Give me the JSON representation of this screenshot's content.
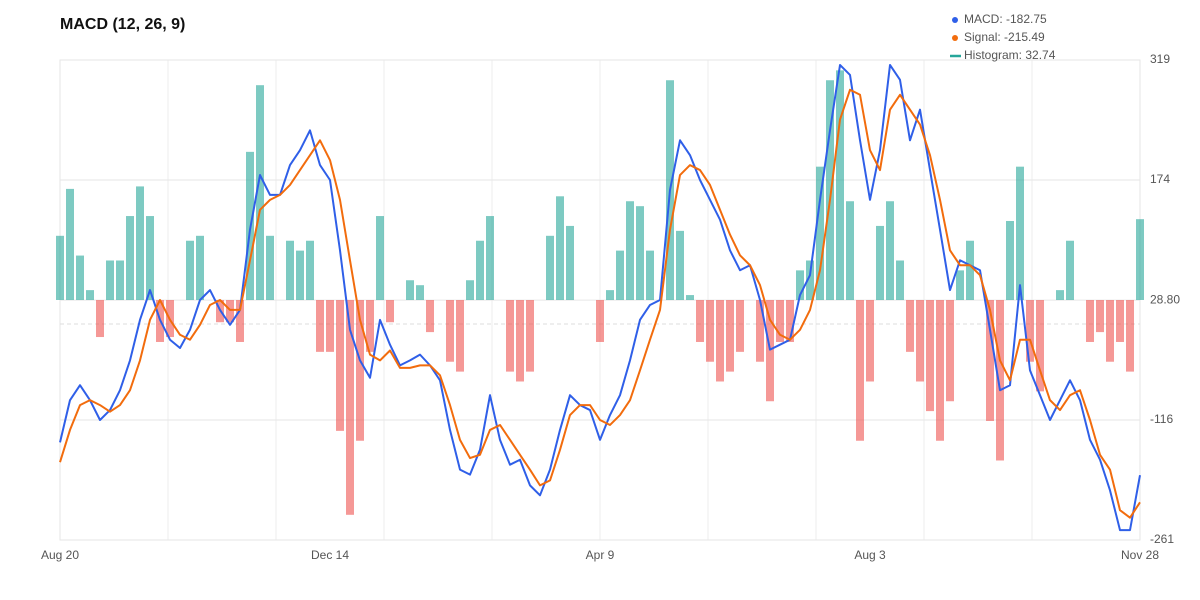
{
  "chart_data": {
    "type": "macd",
    "title": "MACD (12, 26, 9)",
    "categories": [
      "Aug 20",
      null,
      null,
      null,
      null,
      null,
      null,
      null,
      null,
      null,
      null,
      null,
      null,
      null,
      null,
      null,
      null,
      null,
      null,
      null,
      null,
      null,
      null,
      null,
      null,
      null,
      null,
      "Dec 14",
      null,
      null,
      null,
      null,
      null,
      null,
      null,
      null,
      null,
      null,
      null,
      null,
      null,
      null,
      null,
      null,
      null,
      null,
      null,
      null,
      null,
      null,
      null,
      null,
      null,
      null,
      "Apr 9",
      null,
      null,
      null,
      null,
      null,
      null,
      null,
      null,
      null,
      null,
      null,
      null,
      null,
      null,
      null,
      null,
      null,
      null,
      null,
      null,
      null,
      null,
      null,
      null,
      null,
      null,
      "Aug 3",
      null,
      null,
      null,
      null,
      null,
      null,
      null,
      null,
      null,
      null,
      null,
      null,
      null,
      null,
      null,
      null,
      null,
      null,
      null,
      null,
      null,
      null,
      null,
      null,
      null,
      null,
      "Nov 28"
    ],
    "series": [
      {
        "name": "MACD: -182.75",
        "kind": "line",
        "color": "#2f5fe8",
        "values": [
          -143,
          -92,
          -74,
          -92,
          -116,
          -104,
          -80,
          -44,
          5,
          41,
          5,
          -19,
          -29,
          -7,
          29,
          41,
          17,
          -1,
          17,
          114,
          180,
          156,
          156,
          192,
          210,
          234,
          192,
          174,
          89,
          -7,
          -44,
          -65,
          5,
          -25,
          -50,
          -44,
          -37,
          -50,
          -68,
          -128,
          -176,
          -182,
          -152,
          -86,
          -140,
          -170,
          -164,
          -195,
          -207,
          -176,
          -128,
          -86,
          -98,
          -104,
          -140,
          -110,
          -86,
          -44,
          5,
          23,
          29,
          162,
          222,
          204,
          174,
          150,
          126,
          89,
          65,
          71,
          29,
          -31,
          -25,
          -19,
          35,
          59,
          150,
          234,
          313,
          301,
          222,
          150,
          210,
          313,
          295,
          222,
          259,
          186,
          114,
          41,
          77,
          71,
          65,
          -7,
          -80,
          -74,
          47,
          -56,
          -86,
          -116,
          -92,
          -68,
          -92,
          -140,
          -164,
          -201,
          -249,
          -249,
          -182.75
        ]
      },
      {
        "name": "Signal: -215.49",
        "kind": "line",
        "color": "#f26c0d",
        "values": [
          -167,
          -128,
          -98,
          -92,
          -98,
          -106,
          -98,
          -80,
          -44,
          5,
          29,
          5,
          -13,
          -19,
          -1,
          23,
          29,
          17,
          17,
          77,
          138,
          150,
          156,
          168,
          186,
          204,
          222,
          198,
          150,
          77,
          5,
          -37,
          -44,
          -32,
          -53,
          -53,
          -50,
          -50,
          -62,
          -98,
          -140,
          -162,
          -158,
          -128,
          -122,
          -140,
          -158,
          -176,
          -195,
          -189,
          -152,
          -110,
          -98,
          -98,
          -116,
          -122,
          -110,
          -92,
          -56,
          -19,
          17,
          114,
          180,
          192,
          186,
          168,
          138,
          108,
          83,
          71,
          47,
          5,
          -13,
          -19,
          -7,
          17,
          65,
          150,
          247,
          283,
          277,
          210,
          186,
          259,
          277,
          259,
          241,
          204,
          150,
          89,
          71,
          71,
          59,
          17,
          -44,
          -68,
          -19,
          -19,
          -56,
          -92,
          -104,
          -86,
          -80,
          -116,
          -158,
          -176,
          -225,
          -234,
          -215.49
        ]
      },
      {
        "name": "Histogram: 32.74",
        "kind": "histogram",
        "axis": "y2",
        "color": "#26a69a",
        "negative_color": "#ef5350",
        "values": [
          26,
          45,
          18,
          4,
          -15,
          16,
          16,
          34,
          46,
          34,
          -17,
          -15,
          0,
          24,
          26,
          0,
          -9,
          -9,
          -17,
          60,
          87,
          26,
          0,
          24,
          20,
          24,
          -21,
          -21,
          -53,
          -87,
          -57,
          -21,
          34,
          -9,
          0,
          8,
          6,
          -13,
          0,
          -25,
          -29,
          8,
          24,
          34,
          0,
          -29,
          -33,
          -29,
          0,
          26,
          42,
          30,
          0,
          0,
          -17,
          4,
          20,
          40,
          38,
          20,
          0,
          89,
          28,
          2,
          -17,
          -25,
          -33,
          -29,
          -21,
          0,
          -25,
          -41,
          -17,
          -17,
          12,
          16,
          54,
          89,
          93,
          40,
          -57,
          -33,
          30,
          40,
          16,
          -21,
          -33,
          -45,
          -57,
          -41,
          12,
          24,
          0,
          -49,
          -65,
          32,
          54,
          -25,
          -37,
          0,
          4,
          24,
          0,
          -17,
          -13,
          -25,
          -17,
          -29,
          32.74
        ]
      }
    ],
    "ylim": [
      -261,
      319
    ],
    "yticks": [
      319,
      174,
      {
        "value": 28.8,
        "label": "28.80"
      },
      -116,
      -261
    ],
    "y2lim": [
      -97.2,
      97.2
    ],
    "grid": true
  }
}
